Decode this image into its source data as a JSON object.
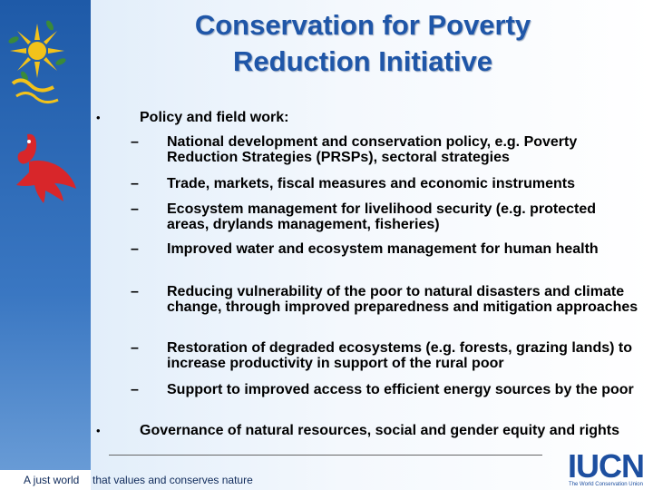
{
  "slide": {
    "title": "Conservation for Poverty Reduction Initiative",
    "bullet_glyph": "•",
    "dash_glyph": "–",
    "bullets": [
      {
        "text": "Policy and field work:",
        "subitems": [
          "National development and conservation policy, e.g. Poverty Reduction Strategies (PRSPs), sectoral strategies",
          "Trade, markets, fiscal measures and economic instruments",
          "Ecosystem management for livelihood security (e.g. protected areas, drylands management, fisheries)",
          "Improved water and ecosystem management for human health",
          "Reducing vulnerability of the poor to natural disasters and climate change, through improved preparedness and mitigation approaches",
          "Restoration of degraded ecosystems (e.g. forests, grazing lands) to increase productivity in support of the rural poor",
          "Support to improved access to efficient energy sources by the poor"
        ]
      },
      {
        "text": "Governance of natural resources, social and gender equity and rights",
        "subitems": []
      }
    ]
  },
  "footer": {
    "tagline_part1": "A just world",
    "tagline_part2": "that values and conserves nature"
  },
  "logo": {
    "name": "IUCN",
    "subtitle": "The World Conservation Union"
  },
  "colors": {
    "title": "#1f56a8",
    "sidebar": "#1e5aa8",
    "sun": "#f2c21a",
    "sun_leaf": "#3a8a3a",
    "bird": "#d8262a"
  },
  "icons": [
    "sun-emblem-icon",
    "bird-emblem-icon"
  ]
}
